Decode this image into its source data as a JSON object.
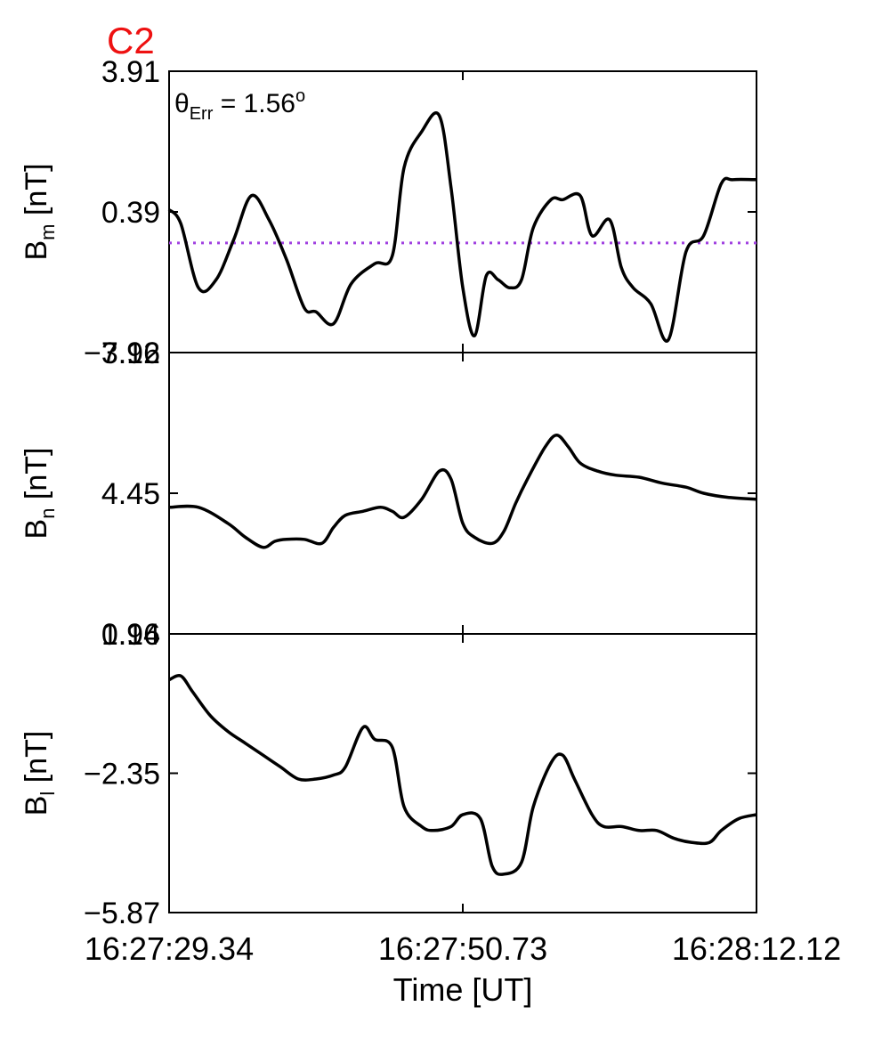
{
  "header": {
    "label": "C2",
    "label_color": "#ee1111"
  },
  "annotation": {
    "theta_symbol": "θ",
    "theta_subscript": "Err",
    "equals": " =  1.56",
    "superscript": "o"
  },
  "xaxis": {
    "label": "Time [UT]",
    "ticks": [
      "16:27:29.34",
      "16:27:50.73",
      "16:28:12.12"
    ]
  },
  "chart_data": [
    {
      "type": "line",
      "panel": "Bm",
      "ylabel_main": "B",
      "ylabel_sub": "m",
      "ylabel_unit": " [nT]",
      "yticks": [
        "3.91",
        "0.39",
        "−3.12"
      ],
      "ylim": [
        -3.12,
        3.91
      ],
      "xlim": [
        0,
        1
      ],
      "reference_line": {
        "y": -0.38,
        "color": "#a040e0",
        "style": "dotted"
      },
      "x": [
        0,
        0.02,
        0.05,
        0.08,
        0.11,
        0.14,
        0.17,
        0.2,
        0.23,
        0.25,
        0.28,
        0.31,
        0.35,
        0.38,
        0.4,
        0.43,
        0.46,
        0.48,
        0.5,
        0.52,
        0.54,
        0.56,
        0.58,
        0.6,
        0.62,
        0.65,
        0.67,
        0.7,
        0.72,
        0.75,
        0.77,
        0.79,
        0.82,
        0.85,
        0.88,
        0.91,
        0.94,
        0.96,
        1.0
      ],
      "y": [
        0.45,
        0.1,
        -1.5,
        -1.3,
        -0.3,
        0.8,
        0.2,
        -0.8,
        -2.0,
        -2.1,
        -2.4,
        -1.4,
        -0.9,
        -0.7,
        1.5,
        2.4,
        2.8,
        1.0,
        -1.5,
        -2.7,
        -1.2,
        -1.3,
        -1.5,
        -1.3,
        0.0,
        0.7,
        0.7,
        0.8,
        -0.2,
        0.2,
        -1.0,
        -1.5,
        -1.9,
        -2.8,
        -0.6,
        -0.2,
        1.1,
        1.2,
        1.2
      ]
    },
    {
      "type": "line",
      "panel": "Bn",
      "ylabel_main": "B",
      "ylabel_sub": "n",
      "ylabel_unit": " [nT]",
      "yticks": [
        "7.96",
        "4.45",
        "0.94"
      ],
      "ylim": [
        0.94,
        7.96
      ],
      "xlim": [
        0,
        1
      ],
      "x": [
        0,
        0.05,
        0.1,
        0.13,
        0.16,
        0.18,
        0.2,
        0.23,
        0.26,
        0.28,
        0.3,
        0.33,
        0.36,
        0.38,
        0.4,
        0.43,
        0.46,
        0.48,
        0.5,
        0.52,
        0.55,
        0.57,
        0.59,
        0.61,
        0.64,
        0.66,
        0.68,
        0.7,
        0.73,
        0.76,
        0.8,
        0.84,
        0.88,
        0.91,
        0.95,
        1.0
      ],
      "y": [
        4.1,
        4.1,
        3.7,
        3.35,
        3.1,
        3.25,
        3.3,
        3.3,
        3.2,
        3.6,
        3.9,
        4.0,
        4.1,
        4.0,
        3.85,
        4.3,
        5.0,
        4.8,
        3.7,
        3.35,
        3.2,
        3.5,
        4.2,
        4.8,
        5.6,
        5.9,
        5.6,
        5.2,
        5.0,
        4.9,
        4.85,
        4.7,
        4.6,
        4.45,
        4.35,
        4.3
      ]
    },
    {
      "type": "line",
      "panel": "Bl",
      "ylabel_main": "B",
      "ylabel_sub": "l",
      "ylabel_unit": " [nT]",
      "yticks": [
        "1.16",
        "−2.35",
        "−5.87"
      ],
      "ylim": [
        -5.87,
        1.16
      ],
      "xlim": [
        0,
        1
      ],
      "x": [
        0,
        0.02,
        0.04,
        0.07,
        0.1,
        0.13,
        0.16,
        0.19,
        0.22,
        0.25,
        0.28,
        0.3,
        0.33,
        0.35,
        0.38,
        0.4,
        0.43,
        0.45,
        0.48,
        0.5,
        0.53,
        0.55,
        0.57,
        0.6,
        0.62,
        0.65,
        0.67,
        0.69,
        0.72,
        0.74,
        0.77,
        0.8,
        0.83,
        0.86,
        0.89,
        0.92,
        0.94,
        0.97,
        1.0
      ],
      "y": [
        0.0,
        0.1,
        -0.3,
        -0.9,
        -1.3,
        -1.6,
        -1.9,
        -2.2,
        -2.5,
        -2.5,
        -2.4,
        -2.2,
        -1.2,
        -1.5,
        -1.7,
        -3.2,
        -3.7,
        -3.8,
        -3.7,
        -3.4,
        -3.5,
        -4.7,
        -4.9,
        -4.6,
        -3.2,
        -2.1,
        -1.9,
        -2.5,
        -3.4,
        -3.7,
        -3.7,
        -3.8,
        -3.8,
        -4.0,
        -4.1,
        -4.1,
        -3.8,
        -3.5,
        -3.4
      ]
    }
  ]
}
